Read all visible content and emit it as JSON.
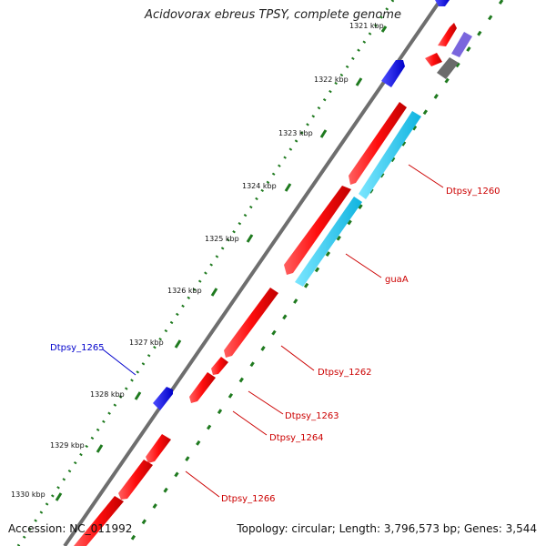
{
  "title": "Acidovorax ebreus TPSY, complete genome",
  "footer": {
    "accession": "Accession: NC_011992",
    "summary": "Topology: circular; Length: 3,796,573 bp; Genes: 3,544"
  },
  "scale_ticks": [
    "1321 kbp",
    "1322 kbp",
    "1323 kbp",
    "1324 kbp",
    "1325 kbp",
    "1326 kbp",
    "1327 kbp",
    "1328 kbp",
    "1329 kbp",
    "1330 kbp"
  ],
  "gene_labels": [
    "Dtpsy_1260",
    "guaA",
    "Dtpsy_1262",
    "Dtpsy_1263",
    "Dtpsy_1264",
    "Dtpsy_1265",
    "Dtpsy_1266"
  ],
  "colors": {
    "forward_cds": "#ff1a1a",
    "reverse_cds": "#1a1aee",
    "rna": "#22ccf0",
    "other": "#7a66dd",
    "backbone": "#8a8a8a",
    "tick": "#1f7a1f",
    "label_red": "#cc0000",
    "label_blue": "#0000cc"
  }
}
